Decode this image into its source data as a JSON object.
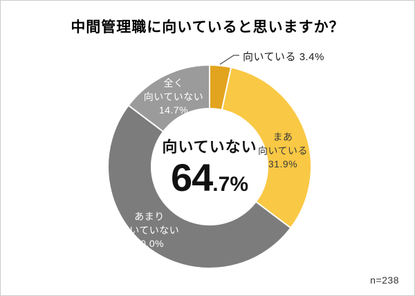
{
  "page": {
    "title": "中間管理職に向いていると思いますか？",
    "sample_size": "n=238"
  },
  "donut": {
    "callout_label": "向いている 3.4%",
    "center_label": "向いていない",
    "center_value_main": "64",
    "center_value_sub": ".7%",
    "label_maa": "まあ\n向いている\n31.9%",
    "label_amari": "あまり\n向いていない\n50.0%",
    "label_mattaku": "全く\n向いていない\n14.7%"
  },
  "chart_data": {
    "type": "pie",
    "subtype": "donut",
    "title": "中間管理職に向いていると思いますか？",
    "categories": [
      "向いている",
      "まあ向いている",
      "あまり向いていない",
      "全く向いていない"
    ],
    "values": [
      3.4,
      31.9,
      50.0,
      14.7
    ],
    "colors": [
      "#E2A41F",
      "#F9C844",
      "#7C7C7C",
      "#9B9B9B"
    ],
    "start_angle_deg": -90,
    "direction": "clockwise",
    "center_summary": {
      "label": "向いていない",
      "value": "64.7%"
    },
    "annotation": "n=238",
    "legend_position": "none"
  }
}
